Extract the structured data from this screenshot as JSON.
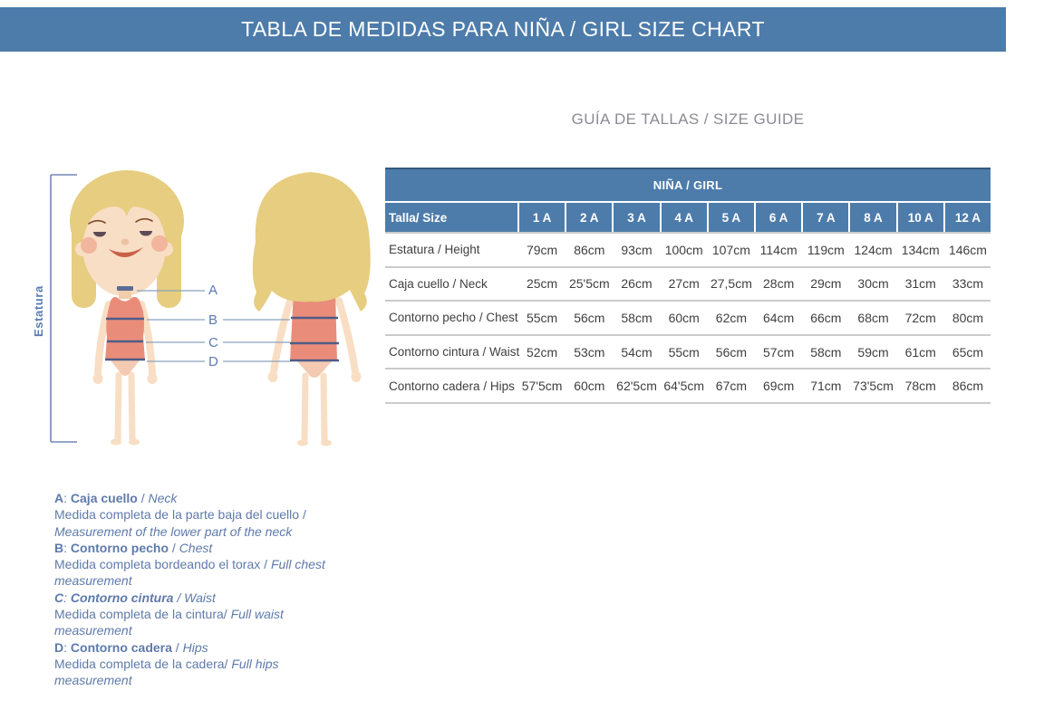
{
  "banner": {
    "title": "TABLA DE MEDIDAS PARA NIÑA / GIRL SIZE CHART"
  },
  "subtitle": "GUÍA DE TALLAS / SIZE GUIDE",
  "illustration": {
    "height_label": "Estatura",
    "markers": [
      "A",
      "B",
      "C",
      "D"
    ]
  },
  "table": {
    "group_header": "NIÑA / GIRL",
    "corner_label": "Talla/ Size",
    "sizes": [
      "1 A",
      "2 A",
      "3 A",
      "4 A",
      "5 A",
      "6 A",
      "7 A",
      "8 A",
      "10 A",
      "12 A"
    ],
    "rows": [
      {
        "label": "Estatura / Height",
        "values": [
          "79cm",
          "86cm",
          "93cm",
          "100cm",
          "107cm",
          "114cm",
          "119cm",
          "124cm",
          "134cm",
          "146cm"
        ]
      },
      {
        "label": "Caja cuello / Neck",
        "values": [
          "25cm",
          "25'5cm",
          "26cm",
          "27cm",
          "27,5cm",
          "28cm",
          "29cm",
          "30cm",
          "31cm",
          "33cm"
        ]
      },
      {
        "label": "Contorno pecho / Chest",
        "values": [
          "55cm",
          "56cm",
          "58cm",
          "60cm",
          "62cm",
          "64cm",
          "66cm",
          "68cm",
          "72cm",
          "80cm"
        ]
      },
      {
        "label": "Contorno cintura / Waist",
        "values": [
          "52cm",
          "53cm",
          "54cm",
          "55cm",
          "56cm",
          "57cm",
          "58cm",
          "59cm",
          "61cm",
          "65cm"
        ]
      },
      {
        "label": "Contorno cadera / Hips",
        "values": [
          "57'5cm",
          "60cm",
          "62'5cm",
          "64'5cm",
          "67cm",
          "69cm",
          "71cm",
          "73'5cm",
          "78cm",
          "86cm"
        ]
      }
    ]
  },
  "legend": {
    "sep_colon": ": ",
    "sep_slash": " / ",
    "items": [
      {
        "letter": "A",
        "term_es": "Caja cuello",
        "term_en": "Neck",
        "desc_es": "Medida completa de la parte baja del cuello /",
        "desc_en": "Measurement of the lower part of the neck",
        "italic_term": false
      },
      {
        "letter": "B",
        "term_es": "Contorno pecho",
        "term_en": "Chest",
        "desc_es": "Medida completa bordeando el torax /",
        "desc_en": "Full chest measurement",
        "italic_term": false
      },
      {
        "letter": "C",
        "term_es": "Contorno cintura",
        "term_en": "Waist",
        "desc_es": "Medida completa de la cintura/",
        "desc_en": "Full waist measurement",
        "italic_term": true
      },
      {
        "letter": "D",
        "term_es": "Contorno cadera",
        "term_en": "Hips",
        "desc_es": "Medida completa de la cadera/",
        "desc_en": "Full hips measurement",
        "italic_term": false
      }
    ]
  },
  "colors": {
    "banner_blue": "#4d7cab",
    "table_blue": "#4d7cab",
    "table_border_dark": "#35597d",
    "row_separator": "#cbcbcb",
    "text_dark": "#3f3f3f",
    "legend_blue": "#5e7aab",
    "subtitle_gray": "#8c8b94",
    "marker_blue": "#5c7cb2",
    "line_blue": "#8aa2bd",
    "hair": "#e6cd80",
    "skin": "#f8dec4",
    "swimsuit": "#e98d7a",
    "suit_stripe": "#4e5c88"
  }
}
